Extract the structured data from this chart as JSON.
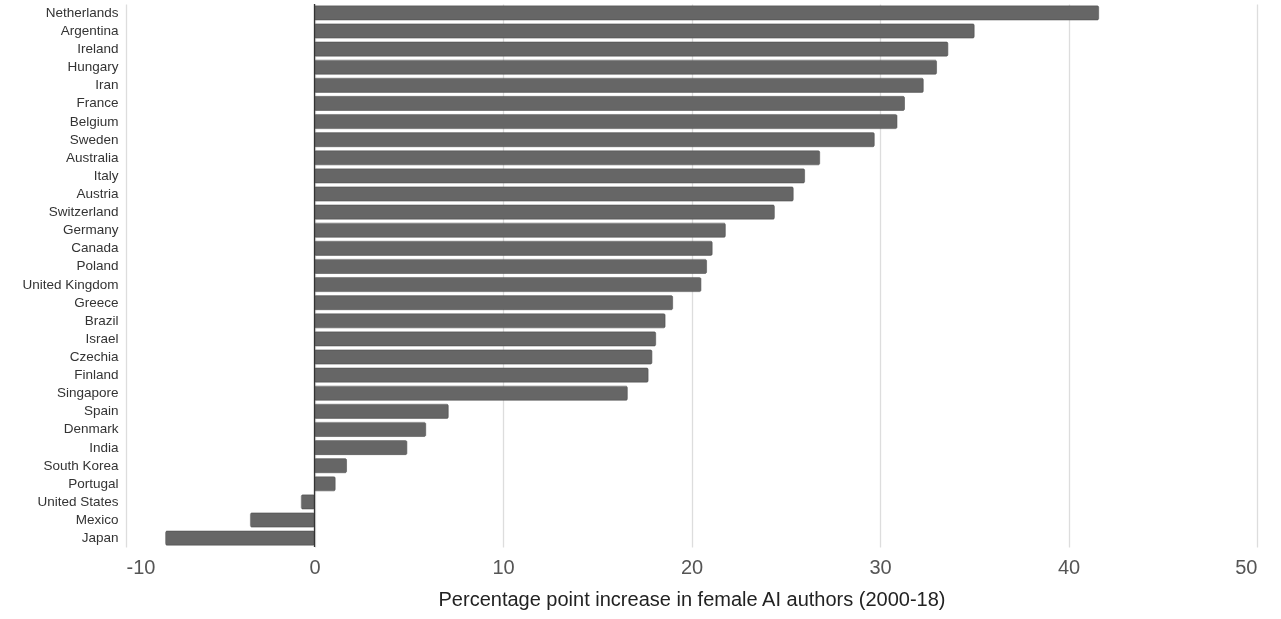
{
  "chart_data": {
    "type": "bar",
    "orientation": "horizontal",
    "xlabel": "Percentage point increase in female AI authors (2000-18)",
    "categories": [
      "Netherlands",
      "Argentina",
      "Ireland",
      "Hungary",
      "Iran",
      "France",
      "Belgium",
      "Sweden",
      "Australia",
      "Italy",
      "Austria",
      "Switzerland",
      "Germany",
      "Canada",
      "Poland",
      "United Kingdom",
      "Greece",
      "Brazil",
      "Israel",
      "Czechia",
      "Finland",
      "Singapore",
      "Spain",
      "Denmark",
      "India",
      "South Korea",
      "Portugal",
      "United States",
      "Mexico",
      "Japan"
    ],
    "values": [
      41.6,
      35.0,
      33.6,
      33.0,
      32.3,
      31.3,
      30.9,
      29.7,
      26.8,
      26.0,
      25.4,
      24.4,
      21.8,
      21.1,
      20.8,
      20.5,
      19.0,
      18.6,
      18.1,
      17.9,
      17.7,
      16.6,
      7.1,
      5.9,
      4.9,
      1.7,
      1.1,
      -0.7,
      -3.4,
      -7.9
    ],
    "color": "#666666",
    "xlim": [
      -10,
      50
    ],
    "xticks": [
      -10,
      0,
      10,
      20,
      30,
      40,
      50
    ],
    "grid": "x",
    "ref_lines": [
      {
        "axis": "x",
        "value": 0,
        "color": "#333333"
      }
    ]
  }
}
